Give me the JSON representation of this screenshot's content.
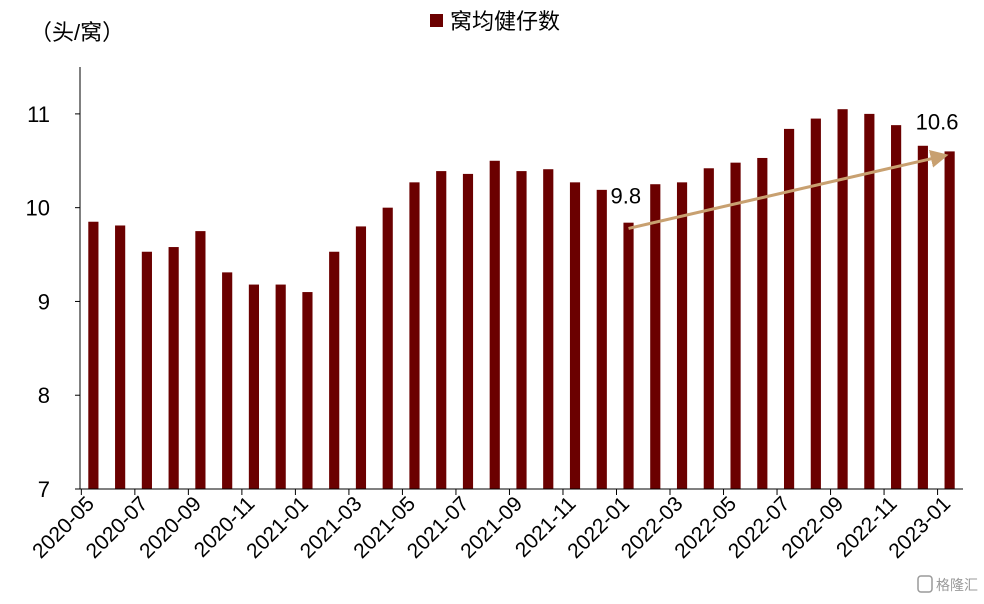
{
  "chart_data": {
    "type": "bar",
    "legend": {
      "label": "窝均健仔数",
      "position": "top-center"
    },
    "ylabel": "（头/窝）",
    "ylim": [
      7,
      11.5
    ],
    "yticks": [
      7,
      8,
      9,
      10,
      11
    ],
    "categories": [
      "2020-05",
      "2020-06",
      "2020-07",
      "2020-08",
      "2020-09",
      "2020-10",
      "2020-11",
      "2020-12",
      "2021-01",
      "2021-02",
      "2021-03",
      "2021-04",
      "2021-05",
      "2021-06",
      "2021-07",
      "2021-08",
      "2021-09",
      "2021-10",
      "2021-11",
      "2021-12",
      "2022-01",
      "2022-02",
      "2022-03",
      "2022-04",
      "2022-05",
      "2022-06",
      "2022-07",
      "2022-08",
      "2022-09",
      "2022-10",
      "2022-11",
      "2022-12",
      "2023-01"
    ],
    "xtick_labels": [
      "2020-05",
      "2020-07",
      "2020-09",
      "2020-11",
      "2021-01",
      "2021-03",
      "2021-05",
      "2021-07",
      "2021-09",
      "2021-11",
      "2022-01",
      "2022-03",
      "2022-05",
      "2022-07",
      "2022-09",
      "2022-11",
      "2023-01"
    ],
    "values": [
      9.85,
      9.81,
      9.53,
      9.58,
      9.75,
      9.31,
      9.18,
      9.18,
      9.1,
      9.53,
      9.8,
      10.0,
      10.27,
      10.39,
      10.36,
      10.5,
      10.39,
      10.41,
      10.27,
      10.19,
      9.84,
      10.25,
      10.27,
      10.42,
      10.48,
      10.53,
      10.84,
      10.95,
      11.05,
      11.0,
      10.88,
      10.66,
      10.6
    ],
    "annotations": [
      {
        "text": "9.8",
        "category": "2022-01",
        "value": 9.8
      },
      {
        "text": "10.6",
        "category": "2023-01",
        "value": 10.6
      }
    ],
    "trend_arrow": {
      "from": {
        "category": "2022-01",
        "value": 9.8
      },
      "to": {
        "category": "2023-01",
        "value": 10.6
      },
      "color": "#c8a070"
    },
    "bar_color": "#6b0000",
    "grid": false
  },
  "watermark": {
    "text": "格隆汇"
  }
}
